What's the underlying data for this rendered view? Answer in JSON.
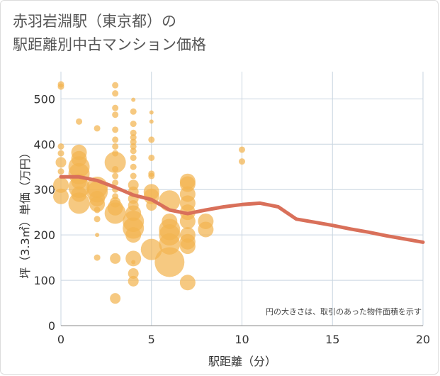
{
  "title": "赤羽岩淵駅（東京都）の\n駅距離別中古マンション価格",
  "chart_data": {
    "type": "scatter",
    "xlabel": "駅距離（分）",
    "ylabel": "坪（3.3㎡）単価（万円）",
    "xlim": [
      0,
      20
    ],
    "ylim": [
      0,
      560
    ],
    "xticks": [
      "0",
      "5",
      "10",
      "15",
      "20"
    ],
    "yticks": [
      "0",
      "100",
      "200",
      "300",
      "400",
      "500"
    ],
    "grid": true,
    "bubble_color": "#f2b450",
    "line_color": "#d9705a",
    "note": "円の大きさは、取引のあった物件面積を示す",
    "points": [
      {
        "x": 0,
        "y": 532,
        "s": 1
      },
      {
        "x": 0,
        "y": 527,
        "s": 1
      },
      {
        "x": 0,
        "y": 395,
        "s": 1
      },
      {
        "x": 0,
        "y": 380,
        "s": 1
      },
      {
        "x": 0,
        "y": 360,
        "s": 2
      },
      {
        "x": 0,
        "y": 340,
        "s": 1
      },
      {
        "x": 0,
        "y": 310,
        "s": 3
      },
      {
        "x": 0,
        "y": 285,
        "s": 3
      },
      {
        "x": 1,
        "y": 450,
        "s": 1
      },
      {
        "x": 1,
        "y": 382,
        "s": 3
      },
      {
        "x": 1,
        "y": 368,
        "s": 3
      },
      {
        "x": 1,
        "y": 350,
        "s": 4
      },
      {
        "x": 1,
        "y": 335,
        "s": 4
      },
      {
        "x": 1,
        "y": 318,
        "s": 3
      },
      {
        "x": 1,
        "y": 305,
        "s": 4
      },
      {
        "x": 1,
        "y": 290,
        "s": 3
      },
      {
        "x": 1,
        "y": 270,
        "s": 4
      },
      {
        "x": 2,
        "y": 435,
        "s": 1
      },
      {
        "x": 2,
        "y": 305,
        "s": 4
      },
      {
        "x": 2,
        "y": 295,
        "s": 4
      },
      {
        "x": 2,
        "y": 280,
        "s": 3
      },
      {
        "x": 2,
        "y": 268,
        "s": 3
      },
      {
        "x": 2,
        "y": 255,
        "s": 1
      },
      {
        "x": 2,
        "y": 235,
        "s": 1
      },
      {
        "x": 2,
        "y": 200,
        "s": 0
      },
      {
        "x": 2,
        "y": 150,
        "s": 1
      },
      {
        "x": 3,
        "y": 530,
        "s": 1
      },
      {
        "x": 3,
        "y": 512,
        "s": 1
      },
      {
        "x": 3,
        "y": 480,
        "s": 1
      },
      {
        "x": 3,
        "y": 465,
        "s": 1
      },
      {
        "x": 3,
        "y": 432,
        "s": 1
      },
      {
        "x": 3,
        "y": 410,
        "s": 1
      },
      {
        "x": 3,
        "y": 395,
        "s": 1
      },
      {
        "x": 3,
        "y": 380,
        "s": 1
      },
      {
        "x": 3,
        "y": 360,
        "s": 4
      },
      {
        "x": 3,
        "y": 345,
        "s": 1
      },
      {
        "x": 3,
        "y": 330,
        "s": 1
      },
      {
        "x": 3,
        "y": 315,
        "s": 1
      },
      {
        "x": 3,
        "y": 300,
        "s": 1
      },
      {
        "x": 3,
        "y": 285,
        "s": 1
      },
      {
        "x": 3,
        "y": 272,
        "s": 2
      },
      {
        "x": 3,
        "y": 260,
        "s": 3
      },
      {
        "x": 3,
        "y": 248,
        "s": 4
      },
      {
        "x": 3,
        "y": 148,
        "s": 2
      },
      {
        "x": 3,
        "y": 60,
        "s": 2
      },
      {
        "x": 4,
        "y": 498,
        "s": 0
      },
      {
        "x": 4,
        "y": 472,
        "s": 1
      },
      {
        "x": 4,
        "y": 445,
        "s": 1
      },
      {
        "x": 4,
        "y": 425,
        "s": 1
      },
      {
        "x": 4,
        "y": 415,
        "s": 1
      },
      {
        "x": 4,
        "y": 405,
        "s": 1
      },
      {
        "x": 4,
        "y": 395,
        "s": 1
      },
      {
        "x": 4,
        "y": 385,
        "s": 1
      },
      {
        "x": 4,
        "y": 370,
        "s": 1
      },
      {
        "x": 4,
        "y": 350,
        "s": 1
      },
      {
        "x": 4,
        "y": 330,
        "s": 1
      },
      {
        "x": 4,
        "y": 310,
        "s": 2
      },
      {
        "x": 4,
        "y": 295,
        "s": 2
      },
      {
        "x": 4,
        "y": 280,
        "s": 2
      },
      {
        "x": 4,
        "y": 265,
        "s": 2
      },
      {
        "x": 4,
        "y": 248,
        "s": 3
      },
      {
        "x": 4,
        "y": 230,
        "s": 4
      },
      {
        "x": 4,
        "y": 215,
        "s": 4
      },
      {
        "x": 4,
        "y": 200,
        "s": 3
      },
      {
        "x": 4,
        "y": 148,
        "s": 3
      },
      {
        "x": 4,
        "y": 140,
        "s": 0
      },
      {
        "x": 4,
        "y": 115,
        "s": 2
      },
      {
        "x": 4,
        "y": 98,
        "s": 2
      },
      {
        "x": 5,
        "y": 470,
        "s": 0
      },
      {
        "x": 5,
        "y": 450,
        "s": 0
      },
      {
        "x": 5,
        "y": 410,
        "s": 1
      },
      {
        "x": 5,
        "y": 370,
        "s": 1
      },
      {
        "x": 5,
        "y": 335,
        "s": 1
      },
      {
        "x": 5,
        "y": 330,
        "s": 1
      },
      {
        "x": 5,
        "y": 295,
        "s": 3
      },
      {
        "x": 5,
        "y": 285,
        "s": 3
      },
      {
        "x": 5,
        "y": 265,
        "s": 2
      },
      {
        "x": 5,
        "y": 168,
        "s": 4
      },
      {
        "x": 6,
        "y": 275,
        "s": 4
      },
      {
        "x": 6,
        "y": 230,
        "s": 3
      },
      {
        "x": 6,
        "y": 212,
        "s": 4
      },
      {
        "x": 6,
        "y": 200,
        "s": 4
      },
      {
        "x": 6,
        "y": 180,
        "s": 4
      },
      {
        "x": 6,
        "y": 140,
        "s": 5
      },
      {
        "x": 7,
        "y": 318,
        "s": 3
      },
      {
        "x": 7,
        "y": 312,
        "s": 3
      },
      {
        "x": 7,
        "y": 290,
        "s": 3
      },
      {
        "x": 7,
        "y": 270,
        "s": 3
      },
      {
        "x": 7,
        "y": 250,
        "s": 3
      },
      {
        "x": 7,
        "y": 230,
        "s": 3
      },
      {
        "x": 7,
        "y": 200,
        "s": 3
      },
      {
        "x": 7,
        "y": 185,
        "s": 3
      },
      {
        "x": 7,
        "y": 175,
        "s": 3
      },
      {
        "x": 7,
        "y": 95,
        "s": 3
      },
      {
        "x": 8,
        "y": 230,
        "s": 3
      },
      {
        "x": 8,
        "y": 212,
        "s": 3
      },
      {
        "x": 10,
        "y": 388,
        "s": 1
      },
      {
        "x": 10,
        "y": 362,
        "s": 1
      }
    ],
    "series": [
      {
        "x": [
          0,
          1,
          2,
          3,
          4,
          5,
          6,
          7,
          8,
          9,
          10,
          11,
          12,
          13,
          14,
          15,
          16,
          17,
          18,
          19,
          20
        ],
        "values": [
          328,
          328,
          320,
          305,
          288,
          278,
          255,
          247,
          255,
          262,
          267,
          270,
          262,
          235,
          228,
          221,
          213,
          206,
          198,
          191,
          184
        ]
      }
    ]
  }
}
